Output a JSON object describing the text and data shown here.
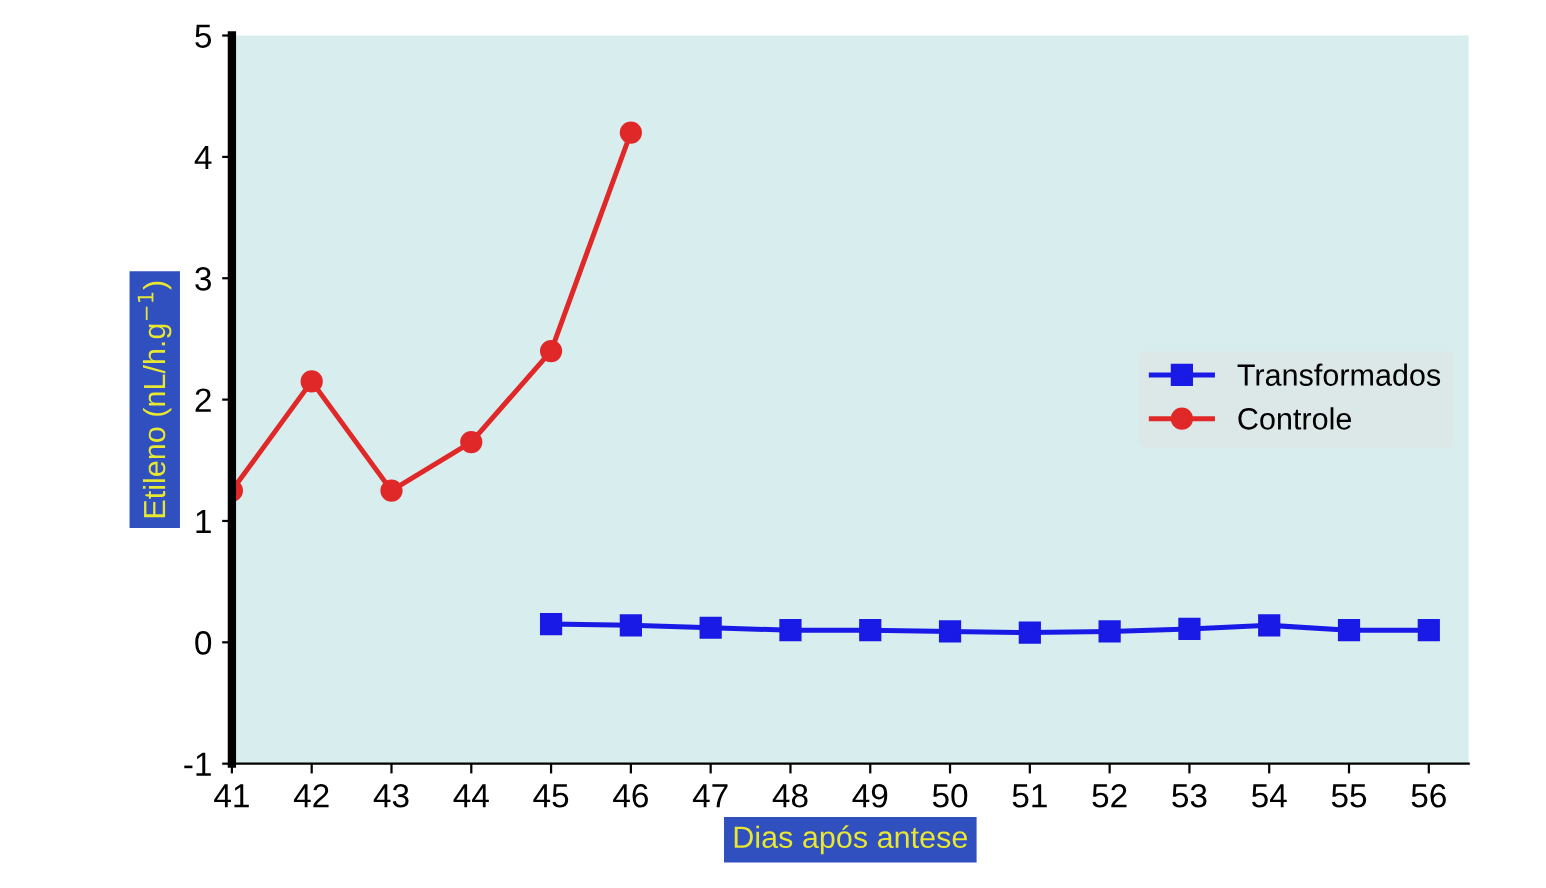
{
  "chart_data": {
    "type": "line",
    "xlabel": "Dias após antese",
    "ylabel": "Etileno (nL/h.g$^{−1}$)",
    "xlim": [
      41,
      56.5
    ],
    "xticks": [
      41,
      42,
      43,
      44,
      45,
      46,
      47,
      48,
      49,
      50,
      51,
      52,
      53,
      54,
      55,
      56
    ],
    "ylim": [
      -1,
      5
    ],
    "yticks": [
      -1,
      0,
      1,
      2,
      3,
      4,
      5
    ],
    "grid": false,
    "legend": "right",
    "series": [
      {
        "name": "Transformados",
        "color": "#1a1ae6",
        "marker": "square",
        "x": [
          45,
          46,
          47,
          48,
          49,
          50,
          51,
          52,
          53,
          54,
          55,
          56
        ],
        "values": [
          0.15,
          0.14,
          0.12,
          0.1,
          0.1,
          0.09,
          0.08,
          0.09,
          0.11,
          0.14,
          0.1,
          0.1
        ]
      },
      {
        "name": "Controle",
        "color": "#e02828",
        "marker": "circle",
        "x": [
          41,
          42,
          43,
          44,
          45,
          46
        ],
        "values": [
          1.25,
          2.15,
          1.25,
          1.65,
          2.4,
          4.2
        ]
      }
    ]
  }
}
